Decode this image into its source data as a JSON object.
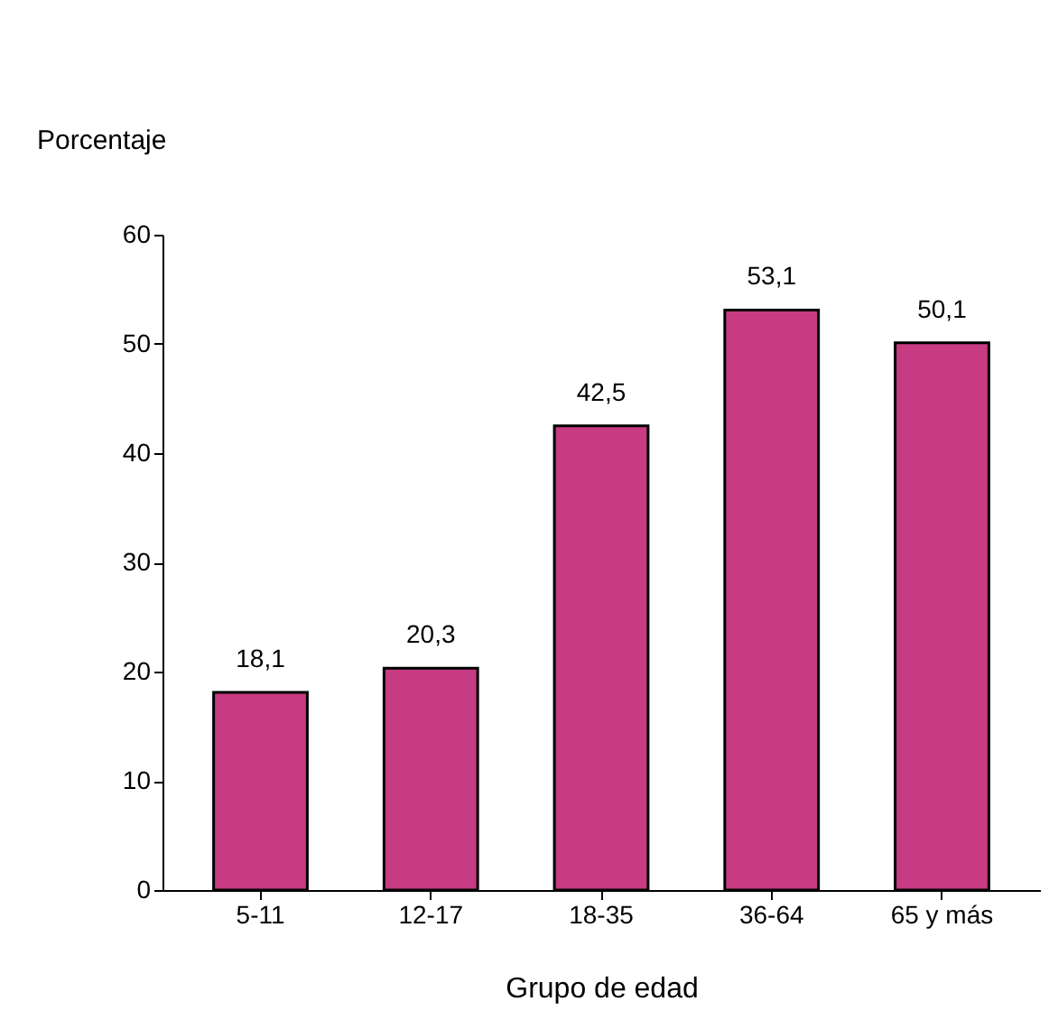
{
  "chart_data": {
    "type": "bar",
    "xlabel": "Grupo de edad",
    "ylabel": "Porcentaje",
    "categories": [
      "5-11",
      "12-17",
      "18-35",
      "36-64",
      "65 y más"
    ],
    "values": [
      18.1,
      20.3,
      42.5,
      53.1,
      50.1
    ],
    "value_labels": [
      "18,1",
      "20,3",
      "42,5",
      "53,1",
      "50,1"
    ],
    "color": "#c63b82",
    "ylim": [
      0,
      60
    ],
    "yticks": [
      0,
      10,
      20,
      30,
      40,
      50,
      60
    ],
    "grid": false
  }
}
